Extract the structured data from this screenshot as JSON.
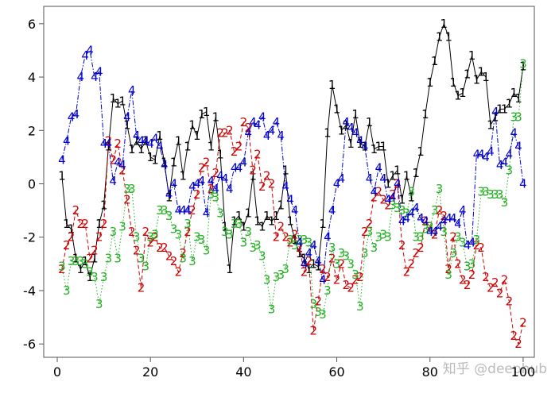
{
  "chart_data": {
    "type": "line",
    "x": [
      1,
      2,
      3,
      4,
      5,
      6,
      7,
      8,
      9,
      10,
      11,
      12,
      13,
      14,
      15,
      16,
      17,
      18,
      19,
      20,
      21,
      22,
      23,
      24,
      25,
      26,
      27,
      28,
      29,
      30,
      31,
      32,
      33,
      34,
      35,
      36,
      37,
      38,
      39,
      40,
      41,
      42,
      43,
      44,
      45,
      46,
      47,
      48,
      49,
      50,
      51,
      52,
      53,
      54,
      55,
      56,
      57,
      58,
      59,
      60,
      61,
      62,
      63,
      64,
      65,
      66,
      67,
      68,
      69,
      70,
      71,
      72,
      73,
      74,
      75,
      76,
      77,
      78,
      79,
      80,
      81,
      82,
      83,
      84,
      85,
      86,
      87,
      88,
      89,
      90,
      91,
      92,
      93,
      94,
      95,
      96,
      97,
      98,
      99,
      100
    ],
    "series": [
      {
        "name": "1",
        "color": "#000000",
        "dash": "",
        "values": [
          0.3,
          -1.5,
          -1.7,
          -2.8,
          -3.2,
          -2.9,
          -3.5,
          -2.8,
          -1.5,
          -0.8,
          1.4,
          3.2,
          3.0,
          3.1,
          2.2,
          1.3,
          1.6,
          1.3,
          1.6,
          1.0,
          0.9,
          1.8,
          0.8,
          -0.5,
          0.8,
          1.6,
          0.3,
          1.4,
          2.2,
          1.8,
          2.6,
          2.7,
          1.4,
          2.5,
          1.1,
          -1.6,
          -3.2,
          -1.4,
          -1.2,
          -1.6,
          -1.1,
          0.3,
          -1.4,
          -1.6,
          -1.2,
          -1.4,
          -1.2,
          -0.8,
          0.5,
          -1.4,
          -2.1,
          -2.6,
          -2.8,
          -3.2,
          -3.0,
          -3.1,
          -1.5,
          1.9,
          3.7,
          2.8,
          2.0,
          2.2,
          1.5,
          2.6,
          1.5,
          1.4,
          2.3,
          1.3,
          1.4,
          1.4,
          0.0,
          0.3,
          0.5,
          -0.6,
          0.3,
          -0.5,
          0.4,
          1.2,
          2.6,
          3.8,
          4.6,
          5.5,
          6.0,
          5.5,
          3.8,
          3.3,
          3.4,
          4.1,
          4.8,
          3.9,
          4.2,
          4.0,
          2.2,
          2.5,
          2.8,
          2.8,
          3.0,
          3.4,
          3.2,
          4.4
        ]
      },
      {
        "name": "2",
        "color": "#cc0000",
        "dash": "5,3",
        "values": [
          -3.2,
          -2.3,
          -2.0,
          -1.0,
          -1.5,
          -1.5,
          -2.8,
          -2.5,
          -2.0,
          -1.5,
          1.6,
          0.9,
          1.5,
          0.5,
          -0.6,
          -1.8,
          -2.5,
          -3.9,
          -1.8,
          -2.2,
          -2.0,
          -2.4,
          -2.4,
          -2.7,
          -2.9,
          -3.3,
          -2.6,
          -1.8,
          -1.0,
          -0.4,
          0.6,
          0.8,
          -0.2,
          0.4,
          1.9,
          1.9,
          2.0,
          1.2,
          1.4,
          2.3,
          2.1,
          0.5,
          1.1,
          -0.1,
          0.3,
          0.0,
          -2.0,
          -1.6,
          -2.0,
          -2.2,
          -1.9,
          -2.4,
          -3.3,
          -2.9,
          -5.5,
          -4.4,
          -3.2,
          -3.5,
          -2.8,
          -3.6,
          -3.0,
          -3.8,
          -3.9,
          -3.6,
          -3.5,
          -1.8,
          -1.5,
          -0.5,
          -0.3,
          -0.6,
          -0.8,
          -0.4,
          0.0,
          -2.3,
          -3.3,
          -3.0,
          -2.6,
          -2.4,
          -1.4,
          -1.6,
          -1.9,
          -1.0,
          -1.2,
          -3.2,
          -2.0,
          -3.0,
          -3.6,
          -3.8,
          -3.4,
          -2.3,
          -2.4,
          -3.5,
          -3.9,
          -3.7,
          -4.1,
          -3.6,
          -4.4,
          -5.7,
          -6.0,
          -5.2
        ]
      },
      {
        "name": "3",
        "color": "#22b022",
        "dash": "1.5,2.5",
        "values": [
          -3.1,
          -4.0,
          -2.9,
          -2.9,
          -2.9,
          -3.0,
          -3.3,
          -3.5,
          -4.5,
          -3.5,
          -2.8,
          -1.8,
          -2.8,
          -1.6,
          -0.2,
          -0.2,
          -2.0,
          -2.8,
          -3.1,
          -2.0,
          -1.9,
          -1.0,
          -1.0,
          -1.2,
          -1.7,
          -1.9,
          -2.8,
          -1.5,
          -2.9,
          -2.0,
          -2.1,
          -2.5,
          -0.4,
          -0.5,
          -1.1,
          -1.8,
          -1.9,
          -1.5,
          -1.5,
          -2.2,
          -1.8,
          -2.4,
          -2.3,
          -2.7,
          -3.6,
          -4.7,
          -3.5,
          -3.4,
          -3.2,
          -2.1,
          -2.3,
          -2.1,
          -2.1,
          -2.2,
          -4.5,
          -4.8,
          -4.9,
          -4.0,
          -2.4,
          -3.0,
          -2.6,
          -2.7,
          -3.0,
          -3.4,
          -4.6,
          -2.6,
          -1.8,
          -2.4,
          -2.0,
          -1.9,
          -2.0,
          -0.8,
          -0.9,
          -1.0,
          -1.1,
          -0.3,
          -2.0,
          -2.0,
          -1.7,
          -1.6,
          -1.0,
          -0.2,
          -1.8,
          -3.4,
          -2.6,
          -2.0,
          -2.2,
          -3.1,
          -3.0,
          -2.1,
          -0.3,
          -0.3,
          -0.4,
          -0.4,
          -0.4,
          -0.7,
          0.5,
          2.5,
          2.5,
          4.5
        ]
      },
      {
        "name": "4",
        "color": "#0000cc",
        "dash": "6,2,1.5,2",
        "values": [
          0.9,
          1.6,
          2.5,
          2.6,
          4.0,
          4.8,
          5.0,
          4.0,
          4.2,
          1.5,
          1.5,
          0.1,
          0.8,
          0.7,
          2.5,
          3.5,
          1.8,
          1.6,
          1.6,
          1.5,
          1.7,
          1.4,
          0.7,
          -0.4,
          0.0,
          -1.0,
          -1.0,
          -1.0,
          -0.1,
          0.0,
          0.1,
          -1.1,
          0.1,
          -0.2,
          0.3,
          0.2,
          -0.2,
          0.6,
          0.6,
          0.8,
          1.9,
          2.3,
          2.2,
          2.5,
          1.8,
          2.0,
          2.3,
          1.8,
          -0.1,
          -0.6,
          -1.0,
          -2.2,
          -3.0,
          -2.6,
          -2.3,
          -2.9,
          -3.6,
          -2.0,
          -1.0,
          0.0,
          0.2,
          2.3,
          2.1,
          1.9,
          1.6,
          1.4,
          0.2,
          -0.3,
          0.6,
          0.2,
          -0.6,
          -0.5,
          0.0,
          -1.4,
          -1.3,
          -1.1,
          -0.9,
          -1.3,
          -1.4,
          -1.8,
          -1.8,
          -1.6,
          -1.4,
          -1.3,
          -1.3,
          -1.5,
          -1.0,
          -2.3,
          -2.2,
          1.1,
          1.1,
          1.0,
          1.2,
          2.7,
          0.7,
          0.8,
          1.1,
          1.9,
          1.4,
          0.0
        ]
      }
    ],
    "xlim": [
      -2.9,
      102.4
    ],
    "ylim": [
      -6.5,
      6.65
    ],
    "xticks": [
      0,
      20,
      40,
      60,
      80,
      100
    ],
    "yticks": [
      -6,
      -4,
      -2,
      0,
      2,
      4,
      6
    ],
    "watermark": "知乎 @deephub"
  }
}
